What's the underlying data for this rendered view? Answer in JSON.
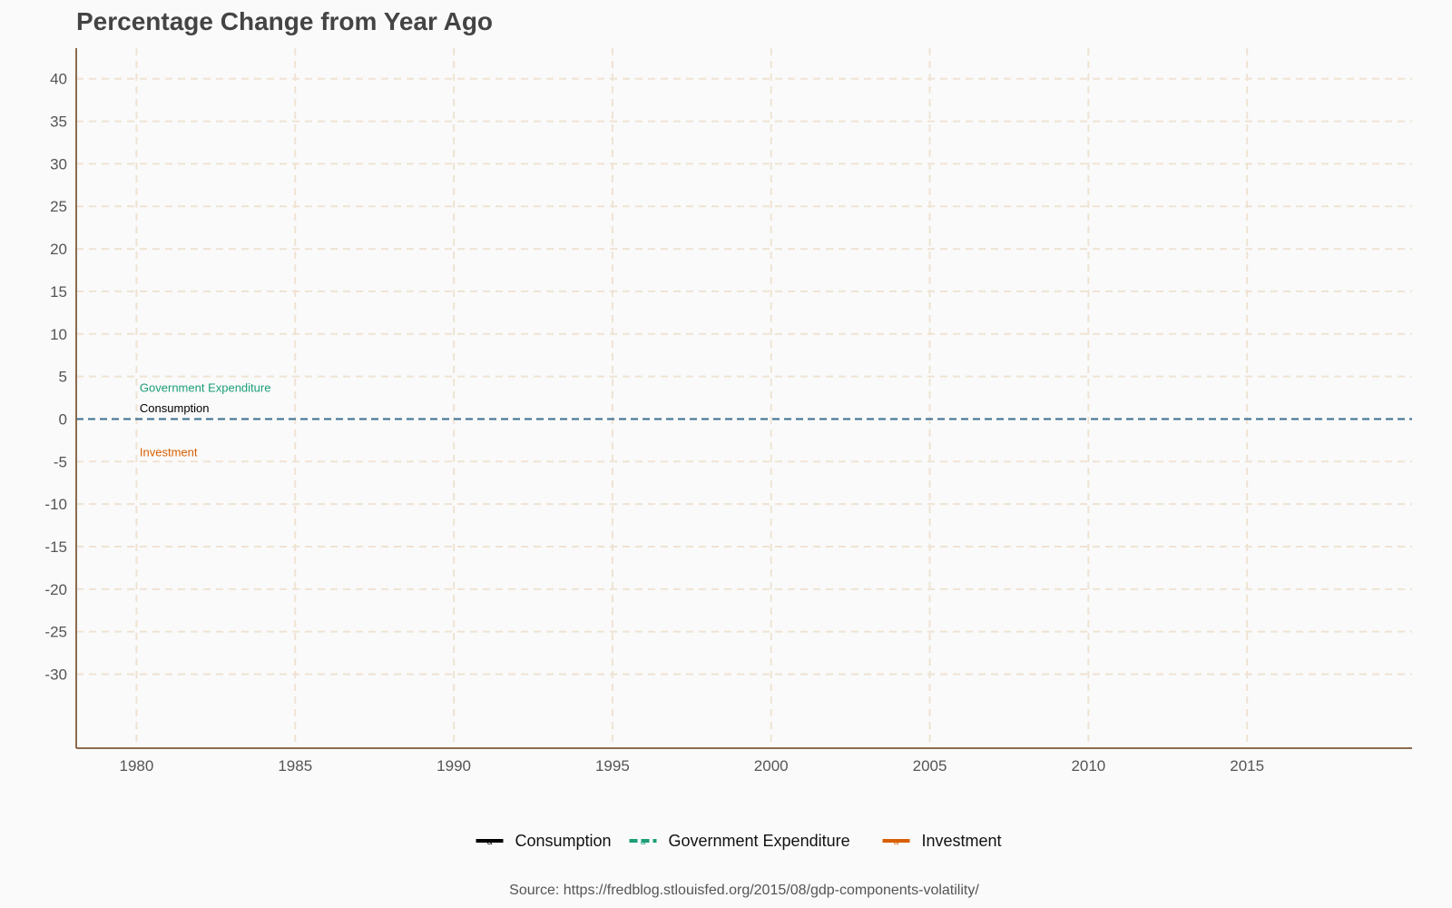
{
  "chart_data": {
    "type": "line",
    "title": "Percentage Change from Year Ago",
    "xlabel": "",
    "ylabel": "",
    "x_ticks": [
      1980,
      1985,
      1990,
      1995,
      2000,
      2005,
      2010,
      2015
    ],
    "y_ticks": [
      40,
      35,
      30,
      25,
      20,
      15,
      10,
      5,
      0,
      -5,
      -10,
      -15,
      -20,
      -25,
      -30
    ],
    "xlim": [
      1978.1,
      2020.2
    ],
    "ylim": [
      -38.7,
      43.6
    ],
    "grid": true,
    "reference_line": {
      "y": 0,
      "color": "#3b6e8f",
      "style": "dashed"
    },
    "series": [
      {
        "name": "Consumption",
        "color": "#000000",
        "values": []
      },
      {
        "name": "Government Expenditure",
        "color": "#1b9e77",
        "values": []
      },
      {
        "name": "Investment",
        "color": "#d95f02",
        "values": []
      }
    ],
    "annotations": [
      {
        "text": "Government Expenditure",
        "x": 1980.1,
        "y": 3.2,
        "color": "#1b9e77"
      },
      {
        "text": "Consumption",
        "x": 1980.1,
        "y": 0.8,
        "color": "#000000"
      },
      {
        "text": "Investment",
        "x": 1980.1,
        "y": -4.4,
        "color": "#d95f02"
      }
    ],
    "legend": {
      "position": "bottom",
      "key_glyph": "a",
      "items": [
        "Consumption",
        "Government Expenditure",
        "Investment"
      ]
    },
    "caption": "Source: https://fredblog.stlouisfed.org/2015/08/gdp-components-volatility/",
    "colors": {
      "background": "#fafafa",
      "grid": "#efe3d3",
      "axis": "#8b6b4f",
      "title": "#444444",
      "tick_text": "#555555"
    }
  }
}
